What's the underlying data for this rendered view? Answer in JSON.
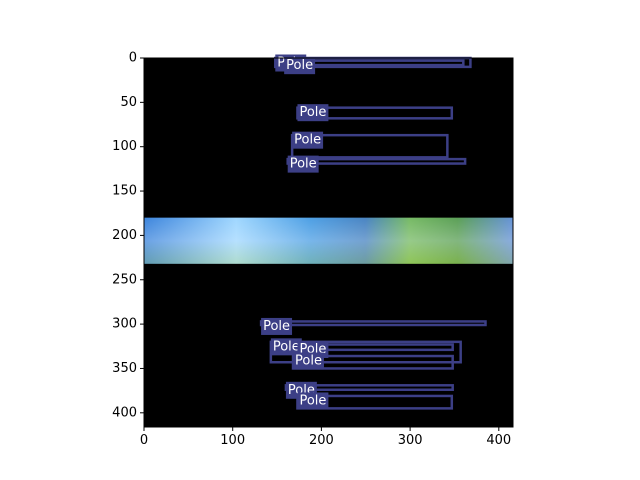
{
  "chart_data": {
    "type": "image-annotation",
    "xlim": [
      0,
      416
    ],
    "ylim": [
      416,
      0
    ],
    "x_ticks": [
      0,
      100,
      200,
      300,
      400
    ],
    "y_ticks": [
      0,
      50,
      100,
      150,
      200,
      250,
      300,
      350,
      400
    ],
    "image_band": {
      "y_start": 180,
      "y_end": 232
    },
    "box_color": "#3c3f86",
    "label_bg": "#3c3f86",
    "label_text_color": "#ffffff",
    "boxes": [
      {
        "label": "Pole",
        "x0": 148,
        "y0": 0,
        "x1": 368,
        "y1": 10
      },
      {
        "label": "Pole",
        "x0": 158,
        "y0": 3,
        "x1": 360,
        "y1": 8
      },
      {
        "label": "Pole",
        "x0": 173,
        "y0": 56,
        "x1": 347,
        "y1": 68
      },
      {
        "label": "Pole",
        "x0": 167,
        "y0": 87,
        "x1": 342,
        "y1": 112
      },
      {
        "label": "Pole",
        "x0": 162,
        "y0": 114,
        "x1": 362,
        "y1": 119
      },
      {
        "label": "Pole",
        "x0": 132,
        "y0": 297,
        "x1": 385,
        "y1": 301
      },
      {
        "label": "Pole",
        "x0": 143,
        "y0": 320,
        "x1": 357,
        "y1": 343
      },
      {
        "label": "Pole",
        "x0": 173,
        "y0": 323,
        "x1": 348,
        "y1": 329
      },
      {
        "label": "Pole",
        "x0": 168,
        "y0": 336,
        "x1": 348,
        "y1": 350
      },
      {
        "label": "Pole",
        "x0": 160,
        "y0": 369,
        "x1": 348,
        "y1": 374
      },
      {
        "label": "Pole",
        "x0": 173,
        "y0": 381,
        "x1": 347,
        "y1": 395
      }
    ]
  }
}
